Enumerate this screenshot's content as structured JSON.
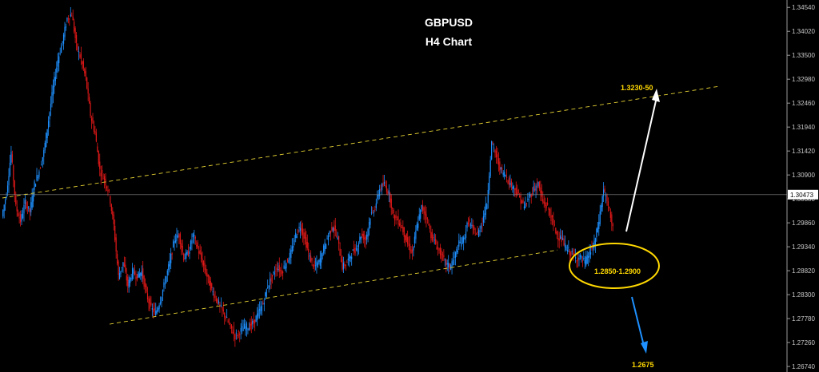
{
  "chart_data": {
    "type": "candlestick",
    "title": "GBPUSD",
    "subtitle": "H4 Chart",
    "y_ticks": [
      "1.34540",
      "1.34020",
      "1.33500",
      "1.32980",
      "1.32460",
      "1.31940",
      "1.31420",
      "1.30900",
      "1.30380",
      "1.29860",
      "1.29340",
      "1.28820",
      "1.28300",
      "1.27780",
      "1.27260",
      "1.26740"
    ],
    "ylim": [
      1.2662,
      1.347
    ],
    "current_price": "1.30473",
    "current_price_value": 1.30473,
    "grid": false,
    "colors": {
      "bull": "#1e90ff",
      "bear": "#e01818",
      "background": "#000000",
      "trendline": "#e6d233",
      "annotation": "#ffd800",
      "arrow_up": "#ffffff",
      "arrow_down": "#1e90ff"
    },
    "price_path": [
      1.3,
      1.305,
      1.314,
      1.302,
      1.299,
      1.303,
      1.301,
      1.307,
      1.31,
      1.314,
      1.321,
      1.328,
      1.334,
      1.338,
      1.343,
      1.344,
      1.337,
      1.334,
      1.33,
      1.322,
      1.318,
      1.31,
      1.308,
      1.305,
      1.298,
      1.287,
      1.29,
      1.285,
      1.288,
      1.287,
      1.288,
      1.283,
      1.28,
      1.279,
      1.282,
      1.286,
      1.29,
      1.295,
      1.296,
      1.291,
      1.292,
      1.296,
      1.293,
      1.29,
      1.287,
      1.284,
      1.282,
      1.28,
      1.278,
      1.276,
      1.274,
      1.275,
      1.276,
      1.276,
      1.277,
      1.279,
      1.281,
      1.285,
      1.287,
      1.289,
      1.288,
      1.29,
      1.292,
      1.296,
      1.298,
      1.295,
      1.291,
      1.289,
      1.29,
      1.293,
      1.296,
      1.298,
      1.295,
      1.289,
      1.29,
      1.292,
      1.293,
      1.296,
      1.295,
      1.3,
      1.302,
      1.306,
      1.307,
      1.305,
      1.3,
      1.299,
      1.297,
      1.294,
      1.292,
      1.298,
      1.302,
      1.3,
      1.296,
      1.294,
      1.292,
      1.29,
      1.289,
      1.291,
      1.294,
      1.295,
      1.299,
      1.297,
      1.296,
      1.299,
      1.303,
      1.316,
      1.313,
      1.31,
      1.309,
      1.307,
      1.306,
      1.304,
      1.302,
      1.304,
      1.306,
      1.307,
      1.303,
      1.302,
      1.299,
      1.296,
      1.295,
      1.293,
      1.292,
      1.291,
      1.291,
      1.29,
      1.292,
      1.294,
      1.299,
      1.306,
      1.302,
      1.298
    ],
    "trendlines": [
      {
        "from": [
          0,
          1.304
        ],
        "to": [
          154,
          1.3283
        ]
      },
      {
        "from": [
          23,
          1.2766
        ],
        "to": [
          119,
          1.2927
        ]
      }
    ],
    "annotations": [
      {
        "text": "1.3230-50"
      },
      {
        "text": "1.2850-1.2900"
      },
      {
        "text": "1.2675"
      }
    ]
  }
}
